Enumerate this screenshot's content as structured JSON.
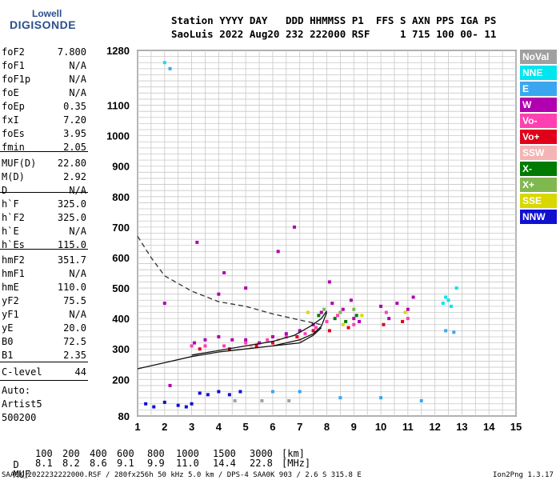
{
  "logo": {
    "top": "Lowell",
    "bottom": "DIGISONDE"
  },
  "header": {
    "line1": "Station YYYY DAY   DDD HHMMSS P1  FFS S AXN PPS IGA PS",
    "line2": "SaoLuis 2022 Aug20 232 222000 RSF     1 715 100 00- 11"
  },
  "params": [
    {
      "label": "foF2",
      "value": "7.800"
    },
    {
      "label": "foF1",
      "value": "N/A"
    },
    {
      "label": "foF1p",
      "value": "N/A"
    },
    {
      "label": "foE",
      "value": "N/A"
    },
    {
      "label": "foEp",
      "value": "0.35"
    },
    {
      "label": "fxI",
      "value": "7.20"
    },
    {
      "label": "foEs",
      "value": "3.95"
    },
    {
      "label": "fmin",
      "value": "2.05"
    },
    {
      "label": "MUF(D)",
      "value": "22.80"
    },
    {
      "label": "M(D)",
      "value": "2.92"
    },
    {
      "label": "D",
      "value": "N/A"
    },
    {
      "label": "h`F",
      "value": "325.0"
    },
    {
      "label": "h`F2",
      "value": "325.0"
    },
    {
      "label": "h`E",
      "value": "N/A"
    },
    {
      "label": "h`Es",
      "value": "115.0"
    },
    {
      "label": "hmF2",
      "value": "351.7"
    },
    {
      "label": "hmF1",
      "value": "N/A"
    },
    {
      "label": "hmE",
      "value": "110.0"
    },
    {
      "label": "yF2",
      "value": "75.5"
    },
    {
      "label": "yF1",
      "value": "N/A"
    },
    {
      "label": "yE",
      "value": "20.0"
    },
    {
      "label": "B0",
      "value": "72.5"
    },
    {
      "label": "B1",
      "value": "2.35"
    },
    {
      "label": "C-level",
      "value": "44"
    }
  ],
  "auto": {
    "label": "Auto:",
    "software": "Artist5",
    "version": "500200"
  },
  "legend": [
    {
      "label": "NoVal",
      "color": "#a0a0a0"
    },
    {
      "label": "NNE",
      "color": "#00e5ee"
    },
    {
      "label": "E",
      "color": "#3aa6f0"
    },
    {
      "label": "W",
      "color": "#b000b0"
    },
    {
      "label": "Vo-",
      "color": "#ff40b0"
    },
    {
      "label": "Vo+",
      "color": "#e0001a"
    },
    {
      "label": "SSW",
      "color": "#f4b4b4"
    },
    {
      "label": "X-",
      "color": "#007a00"
    },
    {
      "label": "X+",
      "color": "#80b850"
    },
    {
      "label": "SSE",
      "color": "#d8d800"
    },
    {
      "label": "NNW",
      "color": "#1010d0"
    }
  ],
  "muf_table": {
    "d_label": "D",
    "d_values": [
      "100",
      "200",
      "400",
      "600",
      "800",
      "1000",
      "1500",
      "3000"
    ],
    "d_unit": "[km]",
    "muf_label": "MUF",
    "muf_values": [
      "8.1",
      "8.2",
      "8.6",
      "9.1",
      "9.9",
      "11.0",
      "14.4",
      "22.8"
    ],
    "muf_unit": "[MHz]"
  },
  "footer": {
    "left": "SAA0K_2022232222000.RSF / 280fx256h 50 kHz 5.0 km / DPS-4 SAA0K 903 / 2.6 S 315.8 E",
    "right": "Ion2Png 1.3.17"
  },
  "chart_data": {
    "type": "scatter",
    "xlim": [
      1,
      15
    ],
    "ylim": [
      80,
      1280
    ],
    "xticks": [
      1,
      2,
      3,
      4,
      5,
      6,
      7,
      8,
      9,
      10,
      11,
      12,
      13,
      14,
      15
    ],
    "yticks": [
      80,
      200,
      300,
      400,
      500,
      600,
      700,
      800,
      900,
      1000,
      1100,
      1280
    ],
    "grid": true,
    "legend_position": "right",
    "series": [
      {
        "name": "W",
        "values": [
          [
            2.2,
            180
          ],
          [
            3.1,
            320
          ],
          [
            3.5,
            330
          ],
          [
            4.0,
            340
          ],
          [
            4.5,
            330
          ],
          [
            5.0,
            330
          ],
          [
            5.5,
            320
          ],
          [
            6.0,
            340
          ],
          [
            6.5,
            350
          ],
          [
            7.0,
            360
          ],
          [
            7.5,
            380
          ],
          [
            7.8,
            420
          ],
          [
            8.2,
            450
          ],
          [
            8.6,
            430
          ],
          [
            8.9,
            460
          ],
          [
            9.0,
            400
          ],
          [
            10.0,
            440
          ],
          [
            10.6,
            450
          ],
          [
            11.0,
            430
          ],
          [
            4.0,
            480
          ],
          [
            4.2,
            550
          ],
          [
            5.0,
            500
          ],
          [
            6.2,
            620
          ],
          [
            6.8,
            700
          ],
          [
            8.1,
            520
          ],
          [
            9.2,
            390
          ],
          [
            10.3,
            400
          ],
          [
            11.2,
            470
          ],
          [
            2.0,
            450
          ],
          [
            3.2,
            650
          ]
        ]
      },
      {
        "name": "Vo-",
        "values": [
          [
            3.0,
            310
          ],
          [
            3.5,
            310
          ],
          [
            4.2,
            310
          ],
          [
            5.0,
            320
          ],
          [
            5.8,
            330
          ],
          [
            6.5,
            340
          ],
          [
            7.2,
            350
          ],
          [
            7.6,
            370
          ],
          [
            8.0,
            390
          ],
          [
            8.4,
            410
          ],
          [
            9.0,
            380
          ],
          [
            10.2,
            420
          ],
          [
            11.0,
            400
          ]
        ]
      },
      {
        "name": "Vo+",
        "values": [
          [
            3.3,
            300
          ],
          [
            4.4,
            300
          ],
          [
            5.4,
            310
          ],
          [
            6.0,
            320
          ],
          [
            6.9,
            340
          ],
          [
            7.5,
            360
          ],
          [
            8.1,
            360
          ],
          [
            8.8,
            370
          ],
          [
            10.1,
            380
          ],
          [
            10.8,
            390
          ]
        ]
      },
      {
        "name": "NNW",
        "values": [
          [
            1.3,
            120
          ],
          [
            1.6,
            110
          ],
          [
            2.0,
            125
          ],
          [
            2.5,
            115
          ],
          [
            3.0,
            120
          ],
          [
            3.3,
            155
          ],
          [
            3.6,
            150
          ],
          [
            4.0,
            160
          ],
          [
            4.4,
            150
          ],
          [
            4.8,
            160
          ],
          [
            2.8,
            110
          ]
        ]
      },
      {
        "name": "NNE",
        "values": [
          [
            12.3,
            450
          ],
          [
            12.4,
            470
          ],
          [
            12.5,
            460
          ],
          [
            12.6,
            440
          ],
          [
            12.8,
            500
          ],
          [
            2.0,
            1240
          ]
        ]
      },
      {
        "name": "E",
        "values": [
          [
            6.0,
            160
          ],
          [
            7.0,
            160
          ],
          [
            8.5,
            140
          ],
          [
            10.0,
            140
          ],
          [
            11.5,
            130
          ],
          [
            12.4,
            360
          ],
          [
            12.7,
            355
          ],
          [
            2.2,
            1220
          ]
        ]
      },
      {
        "name": "X-",
        "values": [
          [
            7.7,
            410
          ],
          [
            8.3,
            400
          ],
          [
            8.7,
            390
          ],
          [
            9.1,
            410
          ]
        ]
      },
      {
        "name": "X+",
        "values": [
          [
            7.9,
            430
          ],
          [
            8.5,
            420
          ],
          [
            9.0,
            430
          ]
        ]
      },
      {
        "name": "SSE",
        "values": [
          [
            7.3,
            420
          ],
          [
            8.6,
            380
          ],
          [
            9.3,
            410
          ],
          [
            10.9,
            420
          ]
        ]
      },
      {
        "name": "NoVal",
        "values": [
          [
            4.6,
            130
          ],
          [
            5.6,
            130
          ],
          [
            6.6,
            130
          ]
        ]
      },
      {
        "name": "SSW",
        "values": [
          [
            5.2,
            310
          ],
          [
            6.2,
            330
          ],
          [
            7.0,
            330
          ]
        ]
      }
    ],
    "lines": [
      {
        "style": "solid",
        "points": [
          [
            1,
            235
          ],
          [
            2,
            255
          ],
          [
            3,
            275
          ],
          [
            4,
            290
          ],
          [
            5,
            300
          ],
          [
            6,
            310
          ],
          [
            7,
            330
          ],
          [
            7.5,
            350
          ],
          [
            7.8,
            375
          ],
          [
            8.0,
            420
          ]
        ]
      },
      {
        "style": "solid",
        "points": [
          [
            3,
            280
          ],
          [
            4,
            295
          ],
          [
            5,
            310
          ],
          [
            6,
            325
          ],
          [
            6.8,
            345
          ],
          [
            7.4,
            375
          ],
          [
            7.8,
            400
          ],
          [
            8.0,
            425
          ]
        ]
      },
      {
        "style": "solid",
        "points": [
          [
            6.0,
            310
          ],
          [
            7.0,
            320
          ],
          [
            7.5,
            345
          ],
          [
            7.8,
            370
          ]
        ]
      },
      {
        "style": "dashed",
        "points": [
          [
            1,
            670
          ],
          [
            1.5,
            600
          ],
          [
            2,
            540
          ],
          [
            3,
            490
          ],
          [
            4,
            455
          ],
          [
            5,
            440
          ],
          [
            6,
            415
          ],
          [
            7,
            395
          ],
          [
            7.8,
            380
          ]
        ]
      }
    ]
  }
}
